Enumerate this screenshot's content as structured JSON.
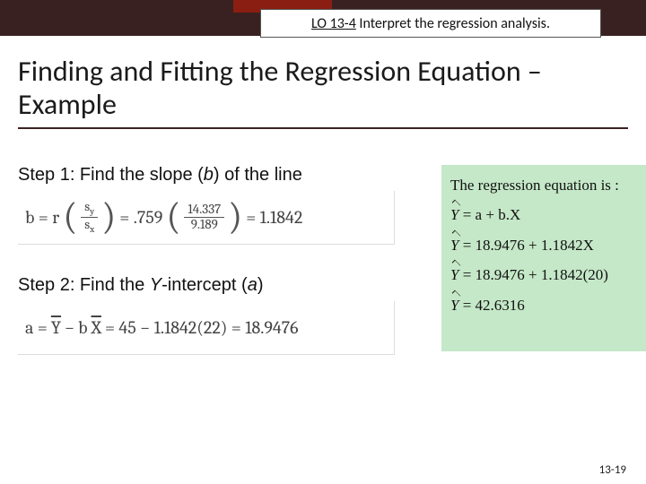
{
  "header": {
    "lo_code": "LO 13-4",
    "lo_text": " Interpret the regression analysis.",
    "colors": {
      "dark_bar": "#3a2121",
      "accent": "#8a1e12"
    }
  },
  "title": "Finding and Fitting the Regression Equation – Example",
  "step1": {
    "label_prefix": "Step 1: Find the slope (",
    "label_var": "b",
    "label_suffix": ") of the line",
    "lhs": "b = r",
    "frac1_num": "s",
    "frac1_num_sub": "y",
    "frac1_den": "s",
    "frac1_den_sub": "x",
    "eq_mid": " = .759",
    "frac2_num": "14.337",
    "frac2_den": "9.189",
    "result": " = 1.1842"
  },
  "step2": {
    "label_prefix": "Step 2: Find the ",
    "label_var": "Y",
    "label_mid": "-intercept (",
    "label_var2": "a",
    "label_suffix": ")",
    "eq_lhs": "a = ",
    "ybar": "Y",
    "minus": " − ",
    "b": "b",
    "xbar": "X",
    "eq_rhs": " = 45 − 1.1842(22) = 18.9476"
  },
  "panel": {
    "line1": "The regression equation is :",
    "eq1": " = a + b.X",
    "eq2": " = 18.9476 + 1.1842X",
    "eq3": " = 18.9476 + 1.1842(20)",
    "eq4": " = 42.6316",
    "bg": "#c5e8c8"
  },
  "page_number": "13-19"
}
